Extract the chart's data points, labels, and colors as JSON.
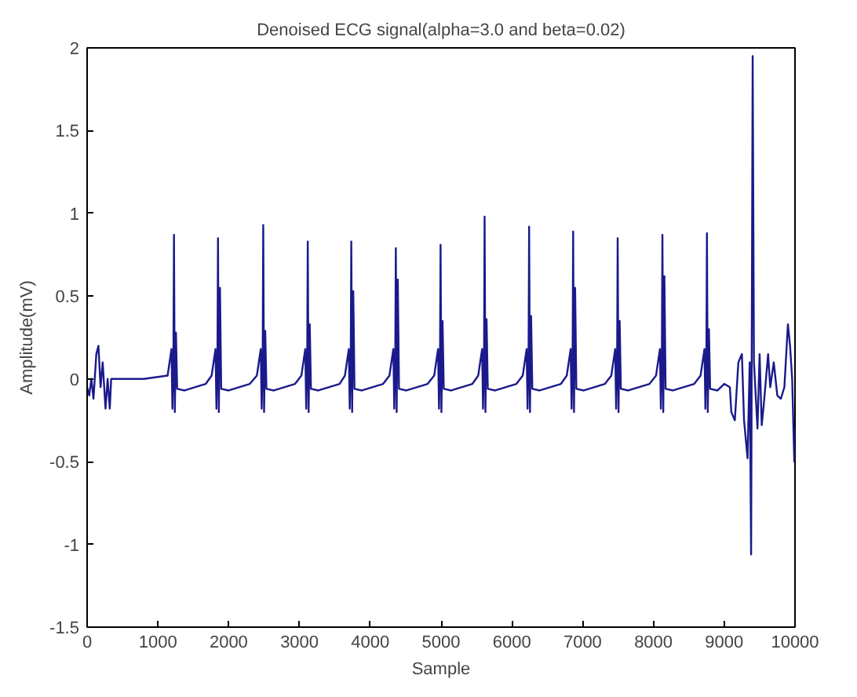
{
  "chart_data": {
    "type": "line",
    "title": "Denoised ECG signal(alpha=3.0 and beta=0.02)",
    "xlabel": "Sample",
    "ylabel": "Amplitude(mV)",
    "xlim": [
      0,
      10000
    ],
    "ylim": [
      -1.5,
      2
    ],
    "xticks": [
      0,
      1000,
      2000,
      3000,
      4000,
      5000,
      6000,
      7000,
      8000,
      9000,
      10000
    ],
    "yticks": [
      -1.5,
      -1,
      -0.5,
      0,
      0.5,
      1,
      1.5,
      2
    ],
    "grid": false,
    "line_style": "solid",
    "series": [
      {
        "color": "#1a1a8c",
        "x": [
          0,
          30,
          60,
          90,
          130,
          160,
          190,
          220,
          260,
          290,
          320,
          340,
          400,
          800,
          1137,
          1192,
          1205,
          1219,
          1227,
          1239,
          1255,
          1272,
          1377,
          1677,
          1759,
          1814,
          1827,
          1841,
          1849,
          1861,
          1877,
          1894,
          1999,
          2299,
          2398,
          2453,
          2466,
          2480,
          2488,
          2500,
          2516,
          2533,
          2638,
          2938,
          3027,
          3082,
          3095,
          3109,
          3117,
          3129,
          3145,
          3162,
          3267,
          3567,
          3642,
          3697,
          3710,
          3724,
          3732,
          3744,
          3760,
          3777,
          3882,
          4182,
          4271,
          4326,
          4339,
          4353,
          4361,
          4373,
          4389,
          4406,
          4511,
          4811,
          4903,
          4958,
          4971,
          4985,
          4993,
          5005,
          5021,
          5038,
          5143,
          5443,
          5525,
          5580,
          5593,
          5607,
          5615,
          5627,
          5643,
          5660,
          5765,
          6065,
          6154,
          6209,
          6222,
          6236,
          6244,
          6256,
          6272,
          6289,
          6394,
          6694,
          6776,
          6831,
          6844,
          6858,
          6866,
          6878,
          6894,
          6911,
          7016,
          7316,
          7405,
          7460,
          7473,
          7487,
          7495,
          7507,
          7523,
          7540,
          7645,
          7945,
          8037,
          8092,
          8105,
          8119,
          8127,
          8139,
          8155,
          8172,
          8277,
          8577,
          8666,
          8721,
          8734,
          8748,
          8756,
          8768,
          8784,
          8801,
          8906,
          9000,
          9080,
          9100,
          9150,
          9200,
          9250,
          9280,
          9330,
          9360,
          9380,
          9402,
          9420,
          9470,
          9500,
          9530,
          9560,
          9620,
          9650,
          9700,
          9750,
          9800,
          9850,
          9900,
          9930,
          9960,
          9990,
          10000
        ],
        "values": [
          -0.05,
          -0.1,
          0.0,
          -0.12,
          0.15,
          0.2,
          -0.05,
          0.1,
          -0.18,
          0.0,
          -0.18,
          0.0,
          0.0,
          0.0,
          0.02,
          0.18,
          -0.18,
          0.1,
          0.87,
          -0.2,
          0.28,
          -0.06,
          -0.07,
          -0.03,
          0.02,
          0.18,
          -0.18,
          0.1,
          0.85,
          -0.2,
          0.55,
          -0.06,
          -0.07,
          -0.03,
          0.02,
          0.18,
          -0.18,
          0.1,
          0.93,
          -0.2,
          0.29,
          -0.06,
          -0.07,
          -0.03,
          0.02,
          0.18,
          -0.18,
          0.1,
          0.83,
          -0.2,
          0.33,
          -0.06,
          -0.07,
          -0.03,
          0.02,
          0.18,
          -0.18,
          0.1,
          0.83,
          -0.2,
          0.53,
          -0.06,
          -0.07,
          -0.03,
          0.02,
          0.18,
          -0.18,
          0.1,
          0.79,
          -0.2,
          0.6,
          -0.06,
          -0.07,
          -0.03,
          0.02,
          0.18,
          -0.18,
          0.1,
          0.81,
          -0.2,
          0.35,
          -0.06,
          -0.07,
          -0.03,
          0.02,
          0.18,
          -0.18,
          0.1,
          0.98,
          -0.2,
          0.36,
          -0.06,
          -0.07,
          -0.03,
          0.02,
          0.18,
          -0.18,
          0.1,
          0.92,
          -0.2,
          0.38,
          -0.06,
          -0.07,
          -0.03,
          0.02,
          0.18,
          -0.18,
          0.1,
          0.89,
          -0.2,
          0.55,
          -0.06,
          -0.07,
          -0.03,
          0.02,
          0.18,
          -0.18,
          0.1,
          0.85,
          -0.2,
          0.35,
          -0.06,
          -0.07,
          -0.03,
          0.02,
          0.18,
          -0.18,
          0.1,
          0.87,
          -0.2,
          0.62,
          -0.06,
          -0.07,
          -0.03,
          0.02,
          0.18,
          -0.18,
          0.1,
          0.88,
          -0.2,
          0.3,
          -0.06,
          -0.07,
          -0.03,
          -0.05,
          -0.2,
          -0.25,
          0.1,
          0.15,
          -0.25,
          -0.48,
          0.1,
          -1.06,
          1.95,
          0.1,
          -0.3,
          0.15,
          -0.28,
          -0.15,
          0.15,
          -0.05,
          0.1,
          -0.1,
          -0.12,
          -0.05,
          0.33,
          0.2,
          0.0,
          -0.5,
          -0.3
        ]
      }
    ]
  }
}
